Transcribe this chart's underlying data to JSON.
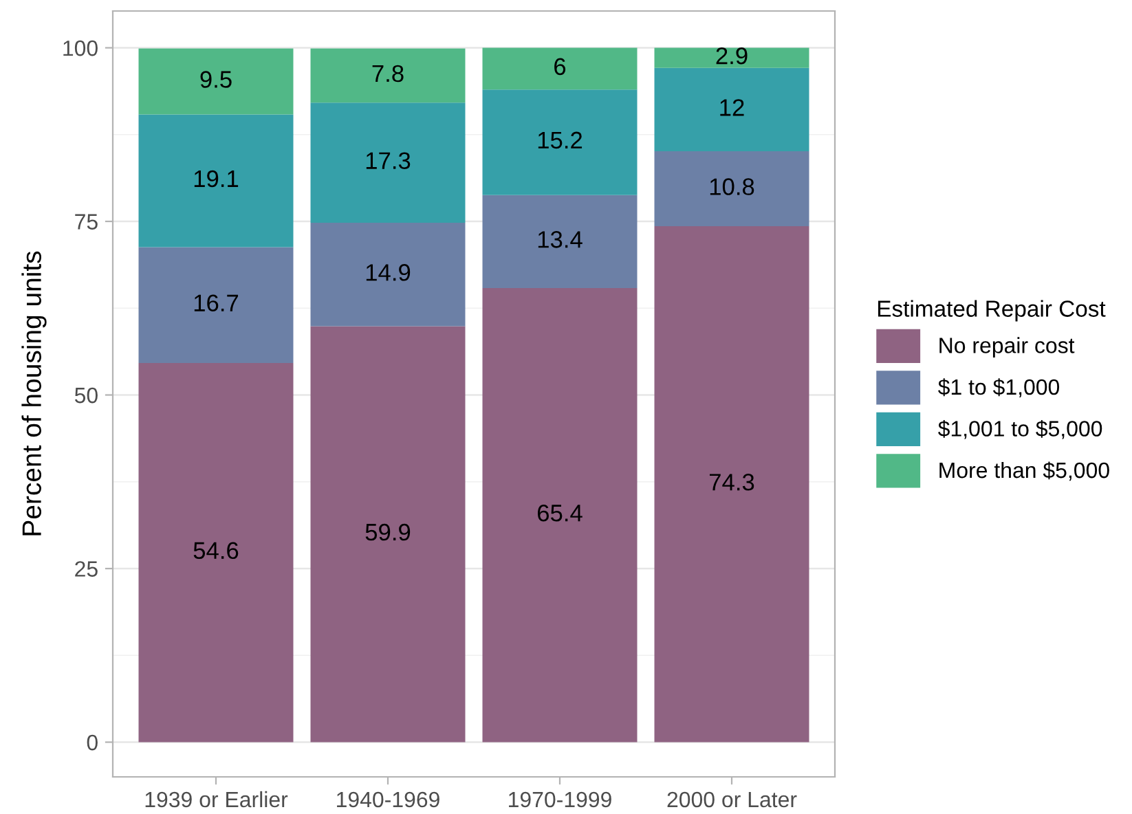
{
  "chart_data": {
    "type": "bar",
    "stacked": true,
    "ylabel": "Percent of housing units",
    "legend_title": "Estimated Repair Cost",
    "categories": [
      "1939 or Earlier",
      "1940-1969",
      "1970-1999",
      "2000 or Later"
    ],
    "series": [
      {
        "name": "No repair cost",
        "color": "#8f6382",
        "values": [
          54.6,
          59.9,
          65.4,
          74.3
        ]
      },
      {
        "name": "$1 to $1,000",
        "color": "#6c80a6",
        "values": [
          16.7,
          14.9,
          13.4,
          10.8
        ]
      },
      {
        "name": "$1,001 to $5,000",
        "color": "#36a0a9",
        "values": [
          19.1,
          17.3,
          15.2,
          12
        ]
      },
      {
        "name": "More than $5,000",
        "color": "#51b887",
        "values": [
          9.5,
          7.8,
          6,
          2.9
        ]
      }
    ],
    "ylim": [
      -5,
      105.3
    ],
    "yticks": [
      0,
      25,
      50,
      75,
      100
    ],
    "grid": "y",
    "legend": "right",
    "data_labels": true
  }
}
